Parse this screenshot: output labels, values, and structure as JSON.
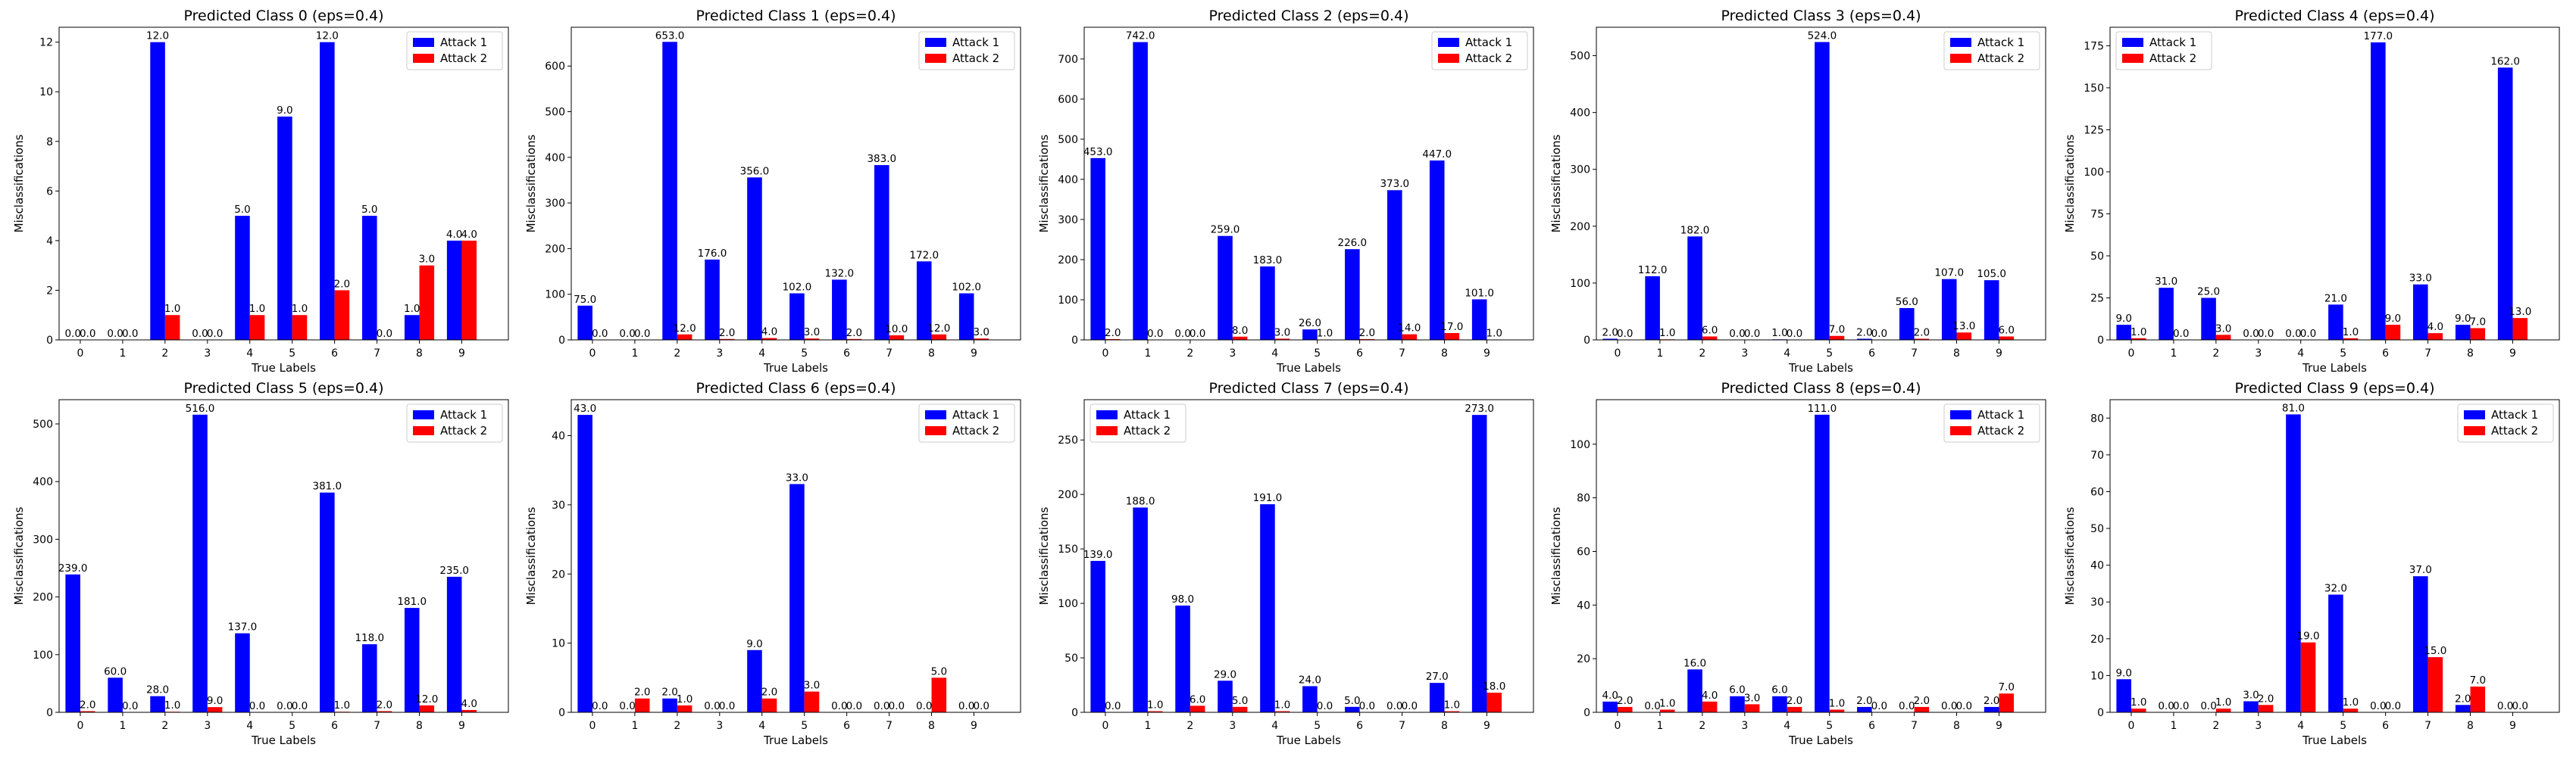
{
  "legend": {
    "series_a": "Attack 1",
    "series_b": "Attack 2"
  },
  "colors": {
    "attack1": "#0000ff",
    "attack2": "#ff0000"
  },
  "chart_data": [
    {
      "type": "bar",
      "title": "Predicted Class 0 (eps=0.4)",
      "xlabel": "True Labels",
      "ylabel": "Misclassifications",
      "categories": [
        "0",
        "1",
        "2",
        "3",
        "4",
        "5",
        "6",
        "7",
        "8",
        "9"
      ],
      "ylim": [
        0,
        12.6
      ],
      "yticks": [
        0,
        2,
        4,
        6,
        8,
        10,
        12
      ],
      "legend_position": "top-right",
      "series": [
        {
          "name": "Attack 1",
          "values": [
            0,
            0,
            12,
            0,
            5,
            9,
            12,
            5,
            1,
            4
          ]
        },
        {
          "name": "Attack 2",
          "values": [
            0,
            0,
            1,
            0,
            1,
            1,
            2,
            0,
            3,
            4
          ]
        }
      ]
    },
    {
      "type": "bar",
      "title": "Predicted Class 1 (eps=0.4)",
      "xlabel": "True Labels",
      "ylabel": "Misclassifications",
      "categories": [
        "0",
        "1",
        "2",
        "3",
        "4",
        "5",
        "6",
        "7",
        "8",
        "9"
      ],
      "ylim": [
        0,
        685
      ],
      "yticks": [
        0,
        100,
        200,
        300,
        400,
        500,
        600
      ],
      "legend_position": "top-right",
      "series": [
        {
          "name": "Attack 1",
          "values": [
            75,
            0,
            653,
            176,
            356,
            102,
            132,
            383,
            172,
            102
          ]
        },
        {
          "name": "Attack 2",
          "values": [
            0,
            0,
            12,
            2,
            4,
            3,
            2,
            10,
            12,
            3
          ]
        }
      ]
    },
    {
      "type": "bar",
      "title": "Predicted Class 2 (eps=0.4)",
      "xlabel": "True Labels",
      "ylabel": "Misclassifications",
      "categories": [
        "0",
        "1",
        "2",
        "3",
        "4",
        "5",
        "6",
        "7",
        "8",
        "9"
      ],
      "ylim": [
        0,
        779
      ],
      "yticks": [
        0,
        100,
        200,
        300,
        400,
        500,
        600,
        700
      ],
      "legend_position": "top-right",
      "series": [
        {
          "name": "Attack 1",
          "values": [
            453,
            742,
            0,
            259,
            183,
            26,
            226,
            373,
            447,
            101
          ]
        },
        {
          "name": "Attack 2",
          "values": [
            2,
            0,
            0,
            8,
            3,
            1,
            2,
            14,
            17,
            1
          ]
        }
      ]
    },
    {
      "type": "bar",
      "title": "Predicted Class 3 (eps=0.4)",
      "xlabel": "True Labels",
      "ylabel": "Misclassifications",
      "categories": [
        "0",
        "1",
        "2",
        "3",
        "4",
        "5",
        "6",
        "7",
        "8",
        "9"
      ],
      "ylim": [
        0,
        550
      ],
      "yticks": [
        0,
        100,
        200,
        300,
        400,
        500
      ],
      "legend_position": "top-right",
      "series": [
        {
          "name": "Attack 1",
          "values": [
            2,
            112,
            182,
            0,
            1,
            524,
            2,
            56,
            107,
            105
          ]
        },
        {
          "name": "Attack 2",
          "values": [
            0,
            1,
            6,
            0,
            0,
            7,
            0,
            2,
            13,
            6
          ]
        }
      ]
    },
    {
      "type": "bar",
      "title": "Predicted Class 4 (eps=0.4)",
      "xlabel": "True Labels",
      "ylabel": "Misclassifications",
      "categories": [
        "0",
        "1",
        "2",
        "3",
        "4",
        "5",
        "6",
        "7",
        "8",
        "9"
      ],
      "ylim": [
        0,
        186
      ],
      "yticks": [
        0,
        25,
        50,
        75,
        100,
        125,
        150,
        175
      ],
      "legend_position": "top-left",
      "series": [
        {
          "name": "Attack 1",
          "values": [
            9,
            31,
            25,
            0,
            0,
            21,
            177,
            33,
            9,
            162
          ]
        },
        {
          "name": "Attack 2",
          "values": [
            1,
            0,
            3,
            0,
            0,
            1,
            9,
            4,
            7,
            13
          ]
        }
      ]
    },
    {
      "type": "bar",
      "title": "Predicted Class 5 (eps=0.4)",
      "xlabel": "True Labels",
      "ylabel": "Misclassifications",
      "categories": [
        "0",
        "1",
        "2",
        "3",
        "4",
        "5",
        "6",
        "7",
        "8",
        "9"
      ],
      "ylim": [
        0,
        542
      ],
      "yticks": [
        0,
        100,
        200,
        300,
        400,
        500
      ],
      "legend_position": "top-right",
      "series": [
        {
          "name": "Attack 1",
          "values": [
            239,
            60,
            28,
            516,
            137,
            0,
            381,
            118,
            181,
            235
          ]
        },
        {
          "name": "Attack 2",
          "values": [
            2,
            0,
            1,
            9,
            0,
            0,
            1,
            2,
            12,
            4
          ]
        }
      ]
    },
    {
      "type": "bar",
      "title": "Predicted Class 6 (eps=0.4)",
      "xlabel": "True Labels",
      "ylabel": "Misclassifications",
      "categories": [
        "0",
        "1",
        "2",
        "3",
        "4",
        "5",
        "6",
        "7",
        "8",
        "9"
      ],
      "ylim": [
        0,
        45.2
      ],
      "yticks": [
        0,
        10,
        20,
        30,
        40
      ],
      "legend_position": "top-right",
      "series": [
        {
          "name": "Attack 1",
          "values": [
            43,
            0,
            2,
            0,
            9,
            33,
            0,
            0,
            0,
            0
          ]
        },
        {
          "name": "Attack 2",
          "values": [
            0,
            2,
            1,
            0,
            2,
            3,
            0,
            0,
            5,
            0
          ]
        }
      ]
    },
    {
      "type": "bar",
      "title": "Predicted Class 7 (eps=0.4)",
      "xlabel": "True Labels",
      "ylabel": "Misclassifications",
      "categories": [
        "0",
        "1",
        "2",
        "3",
        "4",
        "5",
        "6",
        "7",
        "8",
        "9"
      ],
      "ylim": [
        0,
        287
      ],
      "yticks": [
        0,
        50,
        100,
        150,
        200,
        250
      ],
      "legend_position": "top-left",
      "series": [
        {
          "name": "Attack 1",
          "values": [
            139,
            188,
            98,
            29,
            191,
            24,
            5,
            0,
            27,
            273
          ]
        },
        {
          "name": "Attack 2",
          "values": [
            0,
            1,
            6,
            5,
            1,
            0,
            0,
            0,
            1,
            18
          ]
        }
      ]
    },
    {
      "type": "bar",
      "title": "Predicted Class 8 (eps=0.4)",
      "xlabel": "True Labels",
      "ylabel": "Misclassifications",
      "categories": [
        "0",
        "1",
        "2",
        "3",
        "4",
        "5",
        "6",
        "7",
        "8",
        "9"
      ],
      "ylim": [
        0,
        116.6
      ],
      "yticks": [
        0,
        20,
        40,
        60,
        80,
        100
      ],
      "legend_position": "top-right",
      "series": [
        {
          "name": "Attack 1",
          "values": [
            4,
            0,
            16,
            6,
            6,
            111,
            2,
            0,
            0,
            2
          ]
        },
        {
          "name": "Attack 2",
          "values": [
            2,
            1,
            4,
            3,
            2,
            1,
            0,
            2,
            0,
            7
          ]
        }
      ]
    },
    {
      "type": "bar",
      "title": "Predicted Class 9 (eps=0.4)",
      "xlabel": "True Labels",
      "ylabel": "Misclassifications",
      "categories": [
        "0",
        "1",
        "2",
        "3",
        "4",
        "5",
        "6",
        "7",
        "8",
        "9"
      ],
      "ylim": [
        0,
        85
      ],
      "yticks": [
        0,
        10,
        20,
        30,
        40,
        50,
        60,
        70,
        80
      ],
      "legend_position": "top-right",
      "series": [
        {
          "name": "Attack 1",
          "values": [
            9,
            0,
            0,
            3,
            81,
            32,
            0,
            37,
            2,
            0
          ]
        },
        {
          "name": "Attack 2",
          "values": [
            1,
            0,
            1,
            2,
            19,
            1,
            0,
            15,
            7,
            0
          ]
        }
      ]
    }
  ]
}
